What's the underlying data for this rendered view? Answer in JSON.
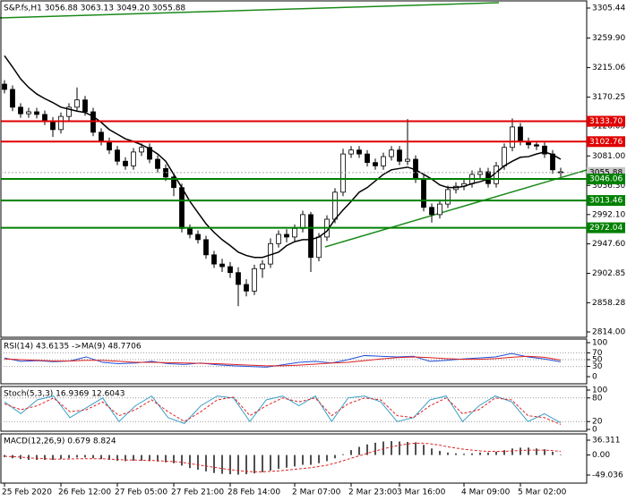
{
  "chart_data": [
    {
      "type": "candlestick",
      "title": "S&P.fs,H1  3056.88 3063.13 3049.20 3055.88",
      "up_color": "#ffffff",
      "down_color": "#000000",
      "ma_color": "#000000",
      "ylim": [
        2814.0,
        3305.44
      ],
      "yticks": [
        3305.44,
        {
          "value": 3259.9,
          "label": "3259.90"
        },
        3215.06,
        {
          "value": 3170.25,
          "label": "3170.25"
        },
        3126.05,
        {
          "value": 3081,
          "label": "3081.00"
        },
        {
          "value": 3036.3,
          "label": "3036.30"
        },
        {
          "value": 2992.1,
          "label": "2992.10"
        },
        {
          "value": 2947.6,
          "label": "2947.60"
        },
        2902.85,
        2858.28,
        {
          "value": 2814,
          "label": "2814.00"
        }
      ],
      "last_price": {
        "value": 3055.88,
        "label": "3055.88"
      },
      "levels": [
        {
          "value": 3133.7,
          "label": "3133.70",
          "color": "#e00000"
        },
        {
          "value": 3102.76,
          "label": "3102.76",
          "color": "#e00000"
        },
        {
          "value": 3046.06,
          "label": "3046.06",
          "color": "#008000"
        },
        {
          "value": 3013.46,
          "label": "3013.46",
          "color": "#008000"
        },
        {
          "value": 2972.04,
          "label": "2972.04",
          "color": "#008000"
        }
      ],
      "candles": [
        [
          3190,
          3196,
          3176,
          3182
        ],
        [
          3182,
          3188,
          3149,
          3155
        ],
        [
          3155,
          3161,
          3139,
          3145
        ],
        [
          3145,
          3154,
          3139,
          3148
        ],
        [
          3148,
          3154,
          3138,
          3144
        ],
        [
          3144,
          3150,
          3128,
          3134
        ],
        [
          3134,
          3140,
          3110,
          3121
        ],
        [
          3121,
          3147,
          3115,
          3141
        ],
        [
          3141,
          3161,
          3135,
          3155
        ],
        [
          3155,
          3185,
          3149,
          3166
        ],
        [
          3166,
          3172,
          3142,
          3148
        ],
        [
          3148,
          3154,
          3111,
          3117
        ],
        [
          3117,
          3123,
          3097,
          3103
        ],
        [
          3103,
          3109,
          3084,
          3090
        ],
        [
          3090,
          3096,
          3067,
          3073
        ],
        [
          3073,
          3079,
          3060,
          3066
        ],
        [
          3066,
          3093,
          3060,
          3087
        ],
        [
          3087,
          3100,
          3081,
          3094
        ],
        [
          3094,
          3100,
          3070,
          3076
        ],
        [
          3076,
          3082,
          3056,
          3062
        ],
        [
          3062,
          3068,
          3043,
          3049
        ],
        [
          3049,
          3055,
          3020,
          3033
        ],
        [
          3033,
          3039,
          2965,
          2971
        ],
        [
          2971,
          2977,
          2956,
          2962
        ],
        [
          2962,
          2968,
          2948,
          2954
        ],
        [
          2954,
          2960,
          2925,
          2931
        ],
        [
          2931,
          2937,
          2911,
          2917
        ],
        [
          2917,
          2925,
          2905,
          2913
        ],
        [
          2913,
          2920,
          2896,
          2904
        ],
        [
          2904,
          2912,
          2853,
          2886
        ],
        [
          2886,
          2894,
          2868,
          2876
        ],
        [
          2876,
          2916,
          2870,
          2910
        ],
        [
          2910,
          2923,
          2896,
          2917
        ],
        [
          2917,
          2956,
          2911,
          2948
        ],
        [
          2948,
          2968,
          2942,
          2962
        ],
        [
          2962,
          2970,
          2950,
          2958
        ],
        [
          2958,
          2977,
          2952,
          2971
        ],
        [
          2971,
          2998,
          2965,
          2992
        ],
        [
          2992,
          2996,
          2905,
          2927
        ],
        [
          2927,
          2964,
          2921,
          2958
        ],
        [
          2958,
          2991,
          2952,
          2985
        ],
        [
          2985,
          3032,
          2979,
          3026
        ],
        [
          3026,
          3092,
          3020,
          3084
        ],
        [
          3084,
          3096,
          3078,
          3090
        ],
        [
          3090,
          3096,
          3078,
          3084
        ],
        [
          3084,
          3090,
          3065,
          3071
        ],
        [
          3071,
          3077,
          3060,
          3066
        ],
        [
          3066,
          3086,
          3060,
          3080
        ],
        [
          3080,
          3096,
          3074,
          3090
        ],
        [
          3090,
          3096,
          3067,
          3073
        ],
        [
          3073,
          3137,
          3067,
          3076
        ],
        [
          3076,
          3082,
          3040,
          3046
        ],
        [
          3046,
          3052,
          2997,
          3003
        ],
        [
          3003,
          3009,
          2980,
          2992
        ],
        [
          2992,
          3014,
          2986,
          3008
        ],
        [
          3008,
          3036,
          3002,
          3030
        ],
        [
          3030,
          3041,
          3024,
          3035
        ],
        [
          3035,
          3045,
          3029,
          3039
        ],
        [
          3039,
          3059,
          3033,
          3053
        ],
        [
          3053,
          3063,
          3047,
          3057
        ],
        [
          3057,
          3063,
          3033,
          3039
        ],
        [
          3039,
          3072,
          3033,
          3066
        ],
        [
          3066,
          3100,
          3060,
          3094
        ],
        [
          3094,
          3138,
          3088,
          3125
        ],
        [
          3125,
          3131,
          3097,
          3103
        ],
        [
          3103,
          3109,
          3092,
          3098
        ],
        [
          3098,
          3104,
          3090,
          3096
        ],
        [
          3096,
          3102,
          3078,
          3084
        ],
        [
          3084,
          3090,
          3054,
          3060
        ],
        [
          3056.88,
          3063.13,
          3049.2,
          3055.88
        ]
      ],
      "ma_values": [
        3233,
        3216,
        3198,
        3185,
        3175,
        3168,
        3162,
        3155,
        3152,
        3149,
        3147,
        3141,
        3132,
        3121,
        3114,
        3107,
        3103,
        3098,
        3092,
        3084,
        3073,
        3053,
        3033,
        3012,
        2995,
        2978,
        2965,
        2954,
        2945,
        2935,
        2930,
        2927,
        2927,
        2931,
        2935,
        2945,
        2951,
        2954,
        2954,
        2958,
        2967,
        2985,
        2999,
        3012,
        3026,
        3033,
        3043,
        3053,
        3060,
        3062,
        3064,
        3060,
        3053,
        3046,
        3037,
        3033,
        3033,
        3035,
        3039,
        3042,
        3046,
        3056,
        3066,
        3073,
        3079,
        3080,
        3084,
        3087,
        3083,
        3076
      ]
    },
    {
      "type": "line",
      "title": "RSI(14) 43.6135 ->MA(9) 48.7706",
      "ylim": [
        0,
        100
      ],
      "yticks": [
        100,
        70,
        50,
        30,
        0
      ],
      "grid": true,
      "series": [
        {
          "color": "#1e4fd8",
          "values": [
            55,
            45,
            47,
            44,
            46,
            58,
            42,
            38,
            40,
            45,
            38,
            36,
            40,
            35,
            32,
            30,
            28,
            35,
            42,
            45,
            40,
            50,
            62,
            60,
            58,
            60,
            45,
            48,
            52,
            55,
            58,
            68,
            58,
            52,
            43.6135
          ]
        },
        {
          "color": "#e02020",
          "values": [
            52,
            50,
            48,
            46,
            46,
            48,
            48,
            45,
            42,
            42,
            41,
            40,
            39,
            38,
            36,
            34,
            32,
            32,
            34,
            37,
            40,
            42,
            47,
            52,
            56,
            58,
            56,
            53,
            51,
            51,
            53,
            57,
            60,
            57,
            48.7706
          ]
        }
      ]
    },
    {
      "type": "line",
      "title": "Stoch(5,3,3) 16.9369 12.6043",
      "ylim": [
        0,
        100
      ],
      "yticks": [
        100,
        80,
        20,
        0
      ],
      "grid": true,
      "series": [
        {
          "color": "#3aa0c8",
          "values": [
            70,
            40,
            75,
            85,
            30,
            55,
            80,
            20,
            60,
            85,
            30,
            15,
            60,
            85,
            80,
            20,
            75,
            85,
            60,
            85,
            20,
            80,
            85,
            70,
            20,
            30,
            75,
            85,
            20,
            60,
            85,
            70,
            20,
            40,
            16.9369
          ]
        },
        {
          "color": "#e02020",
          "dashed": true,
          "values": [
            65,
            50,
            60,
            80,
            45,
            50,
            70,
            35,
            50,
            75,
            45,
            20,
            45,
            75,
            82,
            35,
            60,
            80,
            70,
            80,
            35,
            65,
            80,
            75,
            35,
            30,
            60,
            80,
            40,
            50,
            80,
            75,
            35,
            30,
            12.6043
          ]
        }
      ]
    },
    {
      "type": "line",
      "title": "MACD(12,26,9) 0.679 8.824",
      "ylim": [
        -49.036,
        36.311
      ],
      "yticks": [
        36.311,
        {
          "value": 0,
          "label": "0.00"
        },
        -49.036
      ],
      "grid": false,
      "xticks": [
        {
          "value": 0,
          "label": "25 Feb 2020"
        },
        {
          "value": 7,
          "label": "26 Feb 12:00"
        },
        {
          "value": 14,
          "label": "27 Feb 05:00"
        },
        {
          "value": 21,
          "label": "27 Feb 21:00"
        },
        {
          "value": 28,
          "label": "28 Feb 14:00"
        },
        {
          "value": 36,
          "label": "2 Mar 07:00"
        },
        {
          "value": 43,
          "label": "2 Mar 23:00"
        },
        {
          "value": 49,
          "label": "3 Mar 16:00"
        },
        {
          "value": 57,
          "label": "4 Mar 09:00"
        },
        {
          "value": 64,
          "label": "5 Mar 02:00"
        }
      ],
      "series": [
        {
          "type": "bar",
          "color": "#505050",
          "values": [
            -5,
            -8,
            -10,
            -12,
            -12,
            -12,
            -12,
            -10,
            -8,
            -6,
            -6,
            -8,
            -10,
            -12,
            -14,
            -15,
            -14,
            -14,
            -15,
            -16,
            -18,
            -20,
            -26,
            -32,
            -36,
            -40,
            -44,
            -46,
            -47,
            -48,
            -47,
            -45,
            -42,
            -38,
            -34,
            -31,
            -28,
            -24,
            -24,
            -20,
            -15,
            -8,
            2,
            12,
            20,
            26,
            30,
            33,
            34,
            33,
            32,
            31,
            25,
            16,
            10,
            6,
            4,
            3,
            4,
            6,
            6,
            8,
            12,
            16,
            18,
            18,
            16,
            14,
            8,
            0.679
          ]
        },
        {
          "color": "#e02020",
          "dashed": true,
          "values": [
            -3,
            -4,
            -5,
            -7,
            -8,
            -9,
            -10,
            -10,
            -10,
            -9,
            -9,
            -9,
            -9,
            -10,
            -11,
            -12,
            -12,
            -13,
            -13,
            -14,
            -15,
            -16,
            -18,
            -21,
            -24,
            -27,
            -30,
            -33,
            -36,
            -38,
            -40,
            -41,
            -41,
            -40,
            -39,
            -37,
            -35,
            -33,
            -31,
            -28,
            -25,
            -20,
            -14,
            -8,
            -2,
            4,
            10,
            15,
            20,
            24,
            27,
            29,
            29,
            27,
            24,
            20,
            17,
            14,
            12,
            10,
            9,
            9,
            9,
            10,
            11,
            12,
            12,
            12,
            11,
            8.824
          ]
        }
      ]
    }
  ]
}
